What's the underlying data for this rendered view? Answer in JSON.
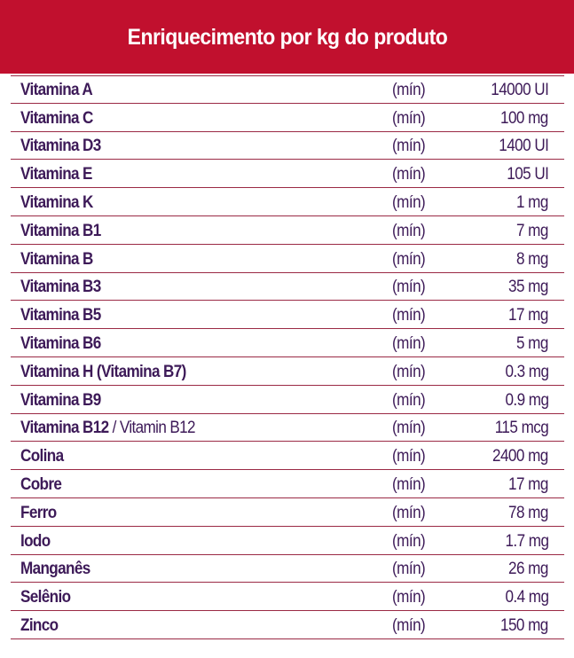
{
  "header": {
    "title": "Enriquecimento por kg do produto"
  },
  "colors": {
    "header_bg": "#c1102e",
    "text": "#3d1a58",
    "rule": "#9b2a45"
  },
  "rows": [
    {
      "name": "Vitamina A",
      "extra": "",
      "qualifier": "(mín)",
      "value": "14000 UI"
    },
    {
      "name": "Vitamina C",
      "extra": "",
      "qualifier": "(mín)",
      "value": "100 mg"
    },
    {
      "name": "Vitamina D3",
      "extra": "",
      "qualifier": "(mín)",
      "value": "1400 UI"
    },
    {
      "name": "Vitamina E",
      "extra": "",
      "qualifier": "(mín)",
      "value": "105 UI"
    },
    {
      "name": "Vitamina K",
      "extra": "",
      "qualifier": "(mín)",
      "value": "1 mg"
    },
    {
      "name": "Vitamina B1",
      "extra": "",
      "qualifier": "(mín)",
      "value": "7 mg"
    },
    {
      "name": "Vitamina B",
      "extra": "",
      "qualifier": "(mín)",
      "value": "8 mg"
    },
    {
      "name": "Vitamina B3",
      "extra": "",
      "qualifier": "(mín)",
      "value": "35 mg"
    },
    {
      "name": "Vitamina B5",
      "extra": "",
      "qualifier": "(mín)",
      "value": "17 mg"
    },
    {
      "name": "Vitamina B6",
      "extra": "",
      "qualifier": "(mín)",
      "value": "5 mg"
    },
    {
      "name": "Vitamina H (Vitamina B7)",
      "extra": "",
      "qualifier": "(mín)",
      "value": "0.3 mg"
    },
    {
      "name": "Vitamina B9",
      "extra": "",
      "qualifier": "(mín)",
      "value": "0.9 mg"
    },
    {
      "name": "Vitamina B12",
      "extra": " / Vitamin B12",
      "qualifier": "(mín)",
      "value": "115 mcg"
    },
    {
      "name": "Colina",
      "extra": "",
      "qualifier": "(mín)",
      "value": "2400 mg"
    },
    {
      "name": "Cobre",
      "extra": "",
      "qualifier": "(mín)",
      "value": "17 mg"
    },
    {
      "name": "Ferro",
      "extra": "",
      "qualifier": "(mín)",
      "value": "78 mg"
    },
    {
      "name": "Iodo",
      "extra": "",
      "qualifier": "(mín)",
      "value": "1.7 mg"
    },
    {
      "name": "Manganês",
      "extra": "",
      "qualifier": "(mín)",
      "value": "26 mg"
    },
    {
      "name": "Selênio",
      "extra": "",
      "qualifier": "(mín)",
      "value": "0.4 mg"
    },
    {
      "name": "Zinco",
      "extra": "",
      "qualifier": "(mín)",
      "value": "150 mg"
    }
  ]
}
